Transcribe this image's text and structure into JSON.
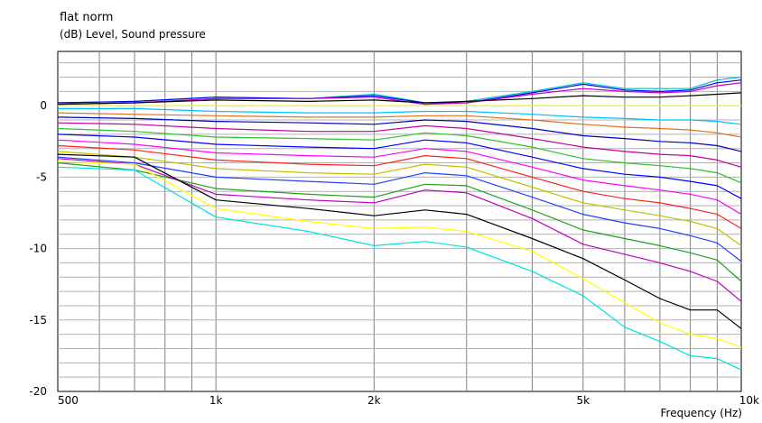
{
  "chart_data": {
    "type": "line",
    "title": "flat norm",
    "ylabel": "(dB)  Level, Sound pressure",
    "xlabel": "Frequency  (Hz)",
    "x_scale": "log",
    "xlim": [
      500,
      10000
    ],
    "ylim": [
      -20,
      3.8
    ],
    "x_ticks": [
      {
        "value": 500,
        "label": "500"
      },
      {
        "value": 1000,
        "label": "1k"
      },
      {
        "value": 2000,
        "label": "2k"
      },
      {
        "value": 5000,
        "label": "5k"
      },
      {
        "value": 10000,
        "label": "10k"
      }
    ],
    "y_ticks": [
      {
        "value": 0,
        "label": "0"
      },
      {
        "value": -5,
        "label": "-5"
      },
      {
        "value": -10,
        "label": "-10"
      },
      {
        "value": -15,
        "label": "-15"
      },
      {
        "value": -20,
        "label": "-20"
      }
    ],
    "grid": true,
    "x": [
      500,
      700,
      1000,
      1500,
      2000,
      2500,
      3000,
      4000,
      5000,
      6000,
      7000,
      8000,
      9000,
      10000
    ],
    "series": [
      {
        "color": "#00c0c0",
        "values": [
          0.2,
          0.3,
          0.6,
          0.5,
          0.8,
          0.2,
          0.3,
          1.0,
          1.6,
          1.2,
          1.2,
          1.2,
          1.8,
          2.0
        ]
      },
      {
        "color": "#0000ff",
        "values": [
          0.2,
          0.3,
          0.6,
          0.5,
          0.7,
          0.2,
          0.2,
          0.9,
          1.5,
          1.1,
          1.0,
          1.1,
          1.6,
          1.8
        ]
      },
      {
        "color": "#c000c0",
        "values": [
          0.1,
          0.2,
          0.5,
          0.5,
          0.6,
          0.1,
          0.2,
          0.8,
          1.2,
          1.0,
          0.9,
          1.0,
          1.4,
          1.6
        ]
      },
      {
        "color": "#000000",
        "values": [
          0.1,
          0.2,
          0.4,
          0.3,
          0.4,
          0.2,
          0.3,
          0.5,
          0.7,
          0.6,
          0.6,
          0.7,
          0.8,
          0.9
        ]
      },
      {
        "color": "#ffff00",
        "values": [
          0.0,
          0.0,
          0.0,
          0.0,
          0.0,
          0.0,
          0.0,
          0.0,
          0.0,
          0.0,
          0.0,
          0.0,
          0.0,
          0.0
        ]
      },
      {
        "color": "#00c0ff",
        "values": [
          -0.2,
          -0.2,
          -0.4,
          -0.5,
          -0.5,
          -0.4,
          -0.4,
          -0.6,
          -0.8,
          -0.9,
          -1.0,
          -1.0,
          -1.1,
          -1.3
        ]
      },
      {
        "color": "#e07020",
        "values": [
          -0.5,
          -0.6,
          -0.7,
          -0.8,
          -0.8,
          -0.7,
          -0.7,
          -1.0,
          -1.3,
          -1.5,
          -1.6,
          -1.7,
          -1.9,
          -2.2
        ]
      },
      {
        "color": "#0000c0",
        "values": [
          -0.8,
          -0.9,
          -1.1,
          -1.2,
          -1.3,
          -1.0,
          -1.1,
          -1.6,
          -2.1,
          -2.3,
          -2.5,
          -2.6,
          -2.8,
          -3.2
        ]
      },
      {
        "color": "#c000a0",
        "values": [
          -1.2,
          -1.3,
          -1.6,
          -1.8,
          -1.8,
          -1.4,
          -1.6,
          -2.3,
          -2.9,
          -3.2,
          -3.4,
          -3.5,
          -3.8,
          -4.3
        ]
      },
      {
        "color": "#30c030",
        "values": [
          -1.6,
          -1.8,
          -2.2,
          -2.3,
          -2.4,
          -1.9,
          -2.1,
          -2.9,
          -3.7,
          -4.0,
          -4.2,
          -4.4,
          -4.7,
          -5.4
        ]
      },
      {
        "color": "#0000ff",
        "values": [
          -2.0,
          -2.2,
          -2.7,
          -2.9,
          -3.0,
          -2.4,
          -2.6,
          -3.6,
          -4.4,
          -4.8,
          -5.0,
          -5.3,
          -5.6,
          -6.5
        ]
      },
      {
        "color": "#ff00ff",
        "values": [
          -2.4,
          -2.7,
          -3.3,
          -3.5,
          -3.6,
          -3.0,
          -3.2,
          -4.3,
          -5.2,
          -5.6,
          -5.9,
          -6.2,
          -6.6,
          -7.6
        ]
      },
      {
        "color": "#ff2020",
        "values": [
          -2.8,
          -3.1,
          -3.8,
          -4.1,
          -4.2,
          -3.5,
          -3.7,
          -5.0,
          -6.0,
          -6.5,
          -6.8,
          -7.2,
          -7.6,
          -8.6
        ]
      },
      {
        "color": "#c0c000",
        "values": [
          -3.2,
          -3.6,
          -4.4,
          -4.7,
          -4.8,
          -4.1,
          -4.3,
          -5.7,
          -6.8,
          -7.3,
          -7.7,
          -8.1,
          -8.6,
          -9.8
        ]
      },
      {
        "color": "#2040ff",
        "values": [
          -3.6,
          -4.0,
          -5.0,
          -5.3,
          -5.5,
          -4.7,
          -4.9,
          -6.4,
          -7.6,
          -8.2,
          -8.6,
          -9.1,
          -9.6,
          -10.9
        ]
      },
      {
        "color": "#20a020",
        "values": [
          -4.0,
          -4.5,
          -5.8,
          -6.2,
          -6.4,
          -5.5,
          -5.6,
          -7.3,
          -8.7,
          -9.3,
          -9.8,
          -10.3,
          -10.8,
          -12.3
        ]
      },
      {
        "color": "#c000c0",
        "values": [
          -3.7,
          -4.1,
          -6.2,
          -6.6,
          -6.8,
          -5.9,
          -6.1,
          -7.9,
          -9.7,
          -10.4,
          -11.0,
          -11.6,
          -12.3,
          -13.7
        ]
      },
      {
        "color": "#000000",
        "values": [
          -3.4,
          -3.6,
          -6.6,
          -7.2,
          -7.7,
          -7.3,
          -7.6,
          -9.3,
          -10.7,
          -12.2,
          -13.5,
          -14.3,
          -14.3,
          -15.6
        ]
      },
      {
        "color": "#ffff00",
        "values": [
          -3.9,
          -4.1,
          -7.2,
          -8.1,
          -8.6,
          -8.5,
          -8.8,
          -10.2,
          -12.1,
          -13.8,
          -15.2,
          -16.0,
          -16.3,
          -16.9
        ]
      },
      {
        "color": "#00e0e0",
        "values": [
          -4.3,
          -4.5,
          -7.8,
          -8.8,
          -9.8,
          -9.5,
          -9.9,
          -11.6,
          -13.3,
          -15.5,
          -16.5,
          -17.5,
          -17.7,
          -18.5
        ]
      }
    ]
  }
}
